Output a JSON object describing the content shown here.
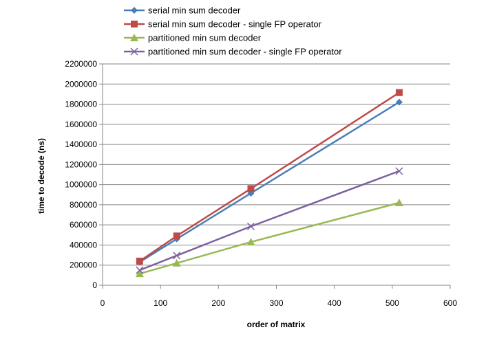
{
  "chart_data": {
    "type": "line",
    "title": "",
    "xlabel": "order of matrix",
    "ylabel": "time to decode (ns)",
    "xlim": [
      0,
      600
    ],
    "ylim": [
      0,
      2200000
    ],
    "xticks": [
      0,
      100,
      200,
      300,
      400,
      500,
      600
    ],
    "yticks": [
      0,
      200000,
      400000,
      600000,
      800000,
      1000000,
      1200000,
      1400000,
      1600000,
      1800000,
      2000000,
      2200000
    ],
    "grid": "horizontal",
    "legend_position": "top",
    "x": [
      64,
      128,
      256,
      512
    ],
    "series": [
      {
        "name": "serial min sum decoder",
        "values": [
          230000,
          460000,
          915000,
          1820000
        ],
        "color": "#4a7ebb",
        "marker": "diamond"
      },
      {
        "name": "serial min sum decoder - single FP operator",
        "values": [
          240000,
          490000,
          960000,
          1915000
        ],
        "color": "#be4b48",
        "marker": "square"
      },
      {
        "name": "partitioned min sum decoder",
        "values": [
          115000,
          220000,
          430000,
          820000
        ],
        "color": "#98b954",
        "marker": "triangle"
      },
      {
        "name": "partitioned min sum decoder - single FP operator",
        "values": [
          150000,
          295000,
          585000,
          1135000
        ],
        "color": "#7d60a0",
        "marker": "x"
      }
    ]
  }
}
